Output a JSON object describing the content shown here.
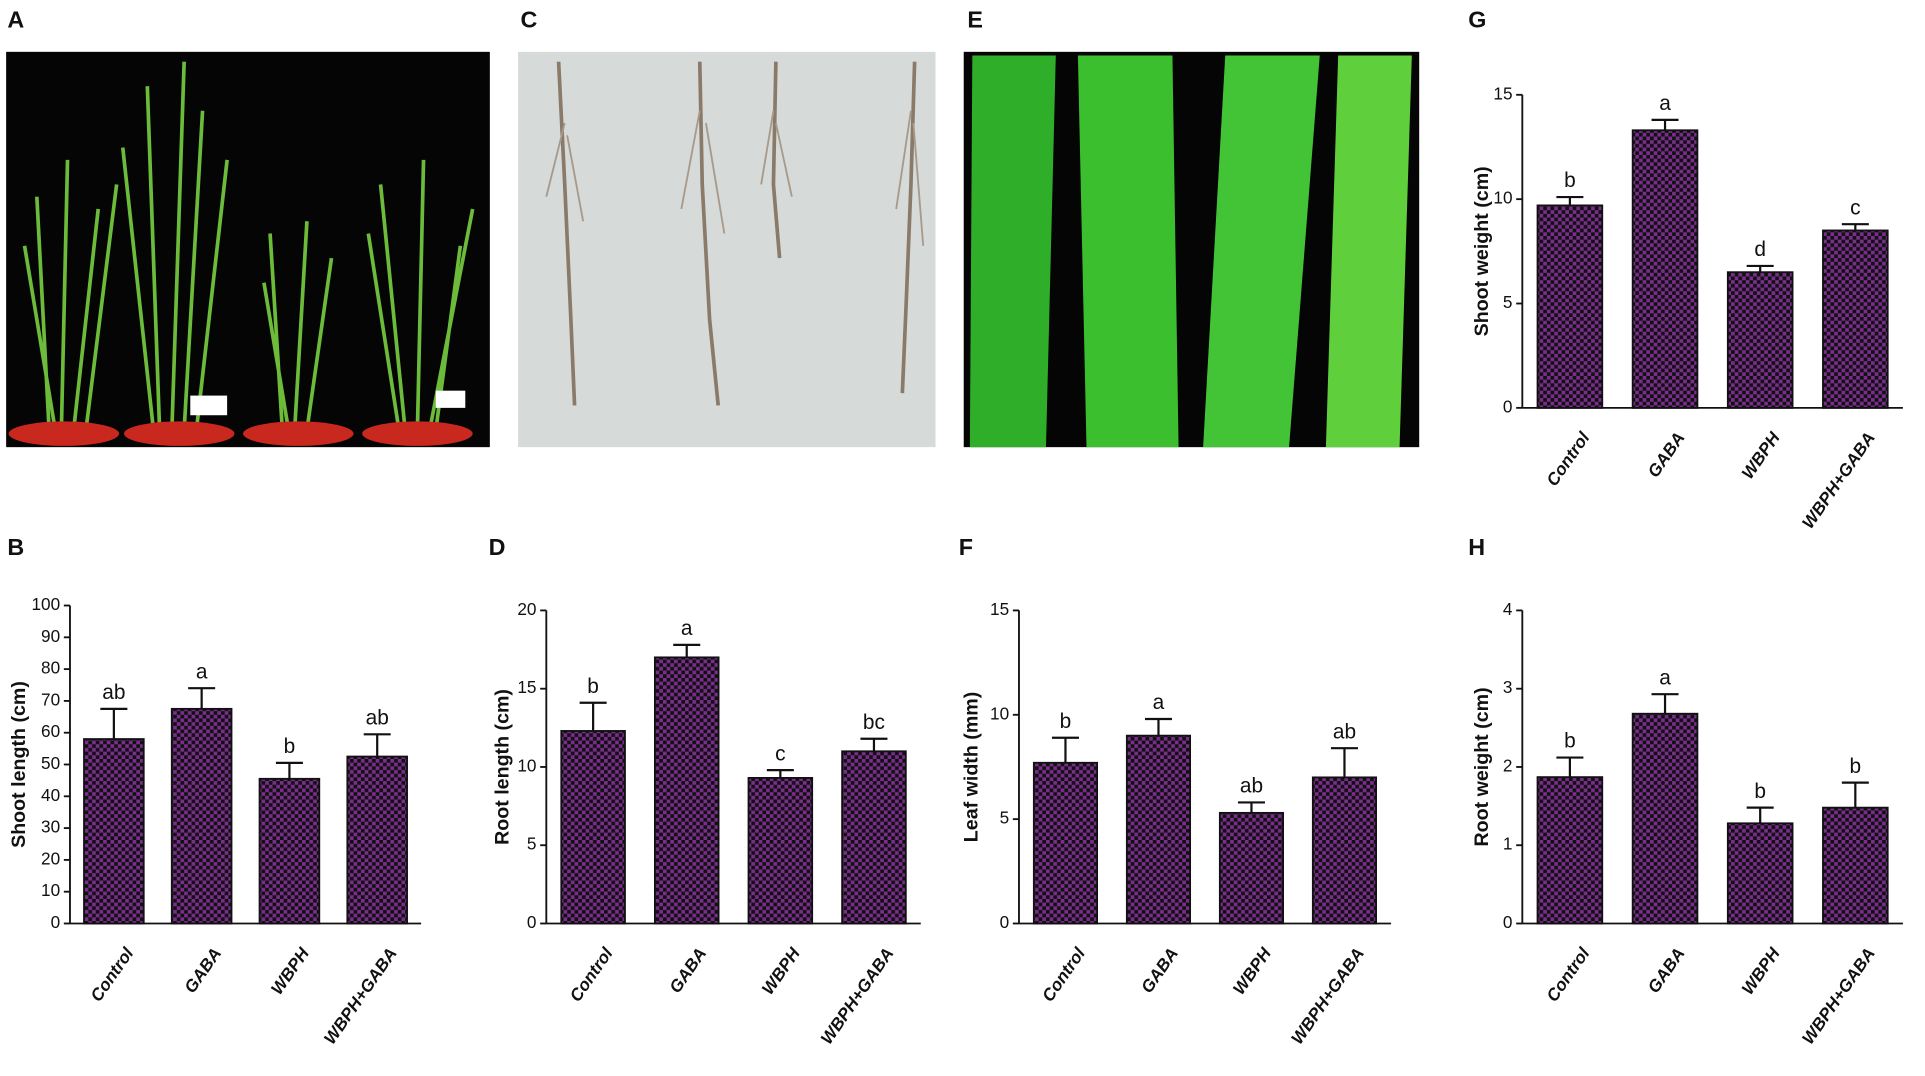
{
  "photos": [
    {
      "panel_label": "A"
    },
    {
      "panel_label": "C"
    },
    {
      "panel_label": "E"
    }
  ],
  "chart_data": [
    {
      "type": "bar",
      "panel_label": "B",
      "ylabel": "Shoot length (cm)",
      "categories": [
        "Control",
        "GABA",
        "WBPH",
        "WBPH+GABA"
      ],
      "values": [
        58,
        67.5,
        45.5,
        52.5
      ],
      "errors": [
        9.5,
        6.5,
        5,
        7
      ],
      "annotations": [
        "ab",
        "a",
        "b",
        "ab"
      ],
      "color": "#7b2d8e",
      "ylim": [
        0,
        100
      ],
      "yticks": [
        0,
        10,
        20,
        30,
        40,
        50,
        60,
        70,
        80,
        90,
        100
      ]
    },
    {
      "type": "bar",
      "panel_label": "D",
      "ylabel": "Root length (cm)",
      "categories": [
        "Control",
        "GABA",
        "WBPH",
        "WBPH+GABA"
      ],
      "values": [
        12.3,
        17,
        9.3,
        11
      ],
      "errors": [
        1.8,
        0.8,
        0.5,
        0.8
      ],
      "annotations": [
        "b",
        "a",
        "c",
        "bc"
      ],
      "color": "#7b2d8e",
      "ylim": [
        0,
        20
      ],
      "yticks": [
        0,
        5,
        10,
        15,
        20
      ]
    },
    {
      "type": "bar",
      "panel_label": "F",
      "ylabel": "Leaf width (mm)",
      "categories": [
        "Control",
        "GABA",
        "WBPH",
        "WBPH+GABA"
      ],
      "values": [
        7.7,
        9,
        5.3,
        7
      ],
      "errors": [
        1.2,
        0.8,
        0.5,
        1.4
      ],
      "annotations": [
        "b",
        "a",
        "ab",
        "ab"
      ],
      "color": "#7b2d8e",
      "ylim": [
        0,
        15
      ],
      "yticks": [
        0,
        5,
        10,
        15
      ]
    },
    {
      "type": "bar",
      "panel_label": "G",
      "ylabel": "Shoot weight (cm)",
      "categories": [
        "Control",
        "GABA",
        "WBPH",
        "WBPH+GABA"
      ],
      "values": [
        9.7,
        13.3,
        6.5,
        8.5
      ],
      "errors": [
        0.4,
        0.5,
        0.3,
        0.3
      ],
      "annotations": [
        "b",
        "a",
        "d",
        "c"
      ],
      "color": "#7b2d8e",
      "ylim": [
        0,
        15
      ],
      "yticks": [
        0,
        5,
        10,
        15
      ]
    },
    {
      "type": "bar",
      "panel_label": "H",
      "ylabel": "Root weight (cm)",
      "categories": [
        "Control",
        "GABA",
        "WBPH",
        "WBPH+GABA"
      ],
      "values": [
        1.87,
        2.68,
        1.28,
        1.48
      ],
      "errors": [
        0.25,
        0.25,
        0.2,
        0.32
      ],
      "annotations": [
        "b",
        "a",
        "b",
        "b"
      ],
      "color": "#7b2d8e",
      "ylim": [
        0,
        4
      ],
      "yticks": [
        0,
        1,
        2,
        3,
        4
      ]
    }
  ]
}
